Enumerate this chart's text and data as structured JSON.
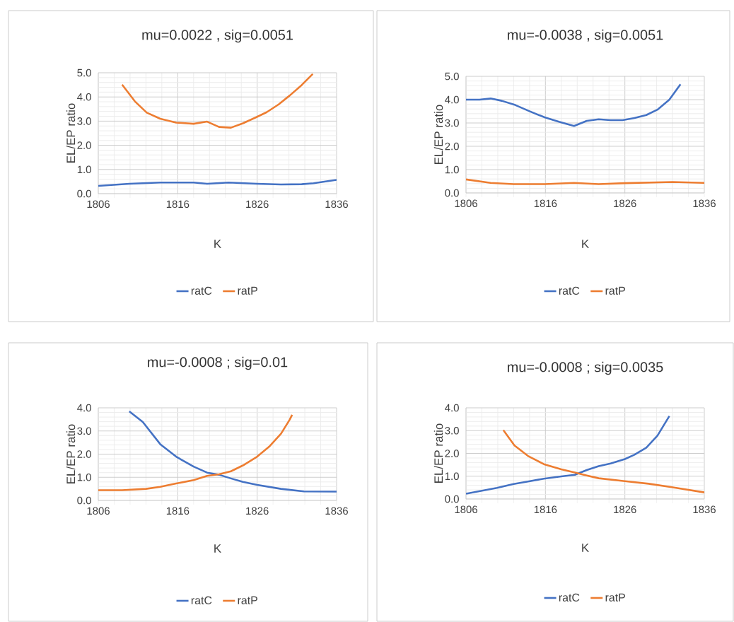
{
  "chart_data": [
    {
      "type": "line",
      "title": "mu=0.0022 , sig=0.0051",
      "xlabel": "K",
      "ylabel": "EL/EP ratio",
      "xlim": [
        1806,
        1836
      ],
      "xticks": [
        1806,
        1816,
        1826,
        1836
      ],
      "ylim": [
        0,
        5
      ],
      "yticks": [
        {
          "value": 0,
          "label": "0.0"
        },
        {
          "value": 1,
          "label": "1.0"
        },
        {
          "value": 2,
          "label": "2.0"
        },
        {
          "value": 3,
          "label": "3.0"
        },
        {
          "value": 4,
          "label": "4.0"
        },
        {
          "value": 5,
          "label": "5.0"
        }
      ],
      "grid": true,
      "legend": "bottom",
      "series": [
        {
          "name": "ratC",
          "color": "#4472c4",
          "x": [
            1806,
            1809.9,
            1813.8,
            1818.0,
            1819.7,
            1822.4,
            1826.0,
            1829.0,
            1831.6,
            1833.1,
            1836
          ],
          "values": [
            0.32,
            0.41,
            0.46,
            0.46,
            0.41,
            0.46,
            0.41,
            0.38,
            0.39,
            0.43,
            0.57
          ]
        },
        {
          "name": "ratP",
          "color": "#ed7d31",
          "x": [
            1809.0,
            1810.6,
            1812.1,
            1813.8,
            1815.8,
            1818.0,
            1819.7,
            1821.2,
            1822.7,
            1824.2,
            1826.0,
            1827.2,
            1828.7,
            1830.1,
            1831.6,
            1833.0
          ],
          "values": [
            4.51,
            3.82,
            3.35,
            3.1,
            2.94,
            2.89,
            2.98,
            2.76,
            2.73,
            2.91,
            3.18,
            3.37,
            3.69,
            4.06,
            4.49,
            4.95
          ]
        }
      ]
    },
    {
      "type": "line",
      "title": "mu=-0.0038 , sig=0.0051",
      "xlabel": "K",
      "ylabel": "EL/EP ratio",
      "xlim": [
        1806,
        1836
      ],
      "xticks": [
        1806,
        1816,
        1826,
        1836
      ],
      "ylim": [
        0,
        5
      ],
      "yticks": [
        {
          "value": 0,
          "label": "0.0"
        },
        {
          "value": 1,
          "label": "1.0"
        },
        {
          "value": 2,
          "label": "2.0"
        },
        {
          "value": 3,
          "label": "3.0"
        },
        {
          "value": 4,
          "label": "4.0"
        },
        {
          "value": 5,
          "label": "5.0"
        }
      ],
      "grid": true,
      "legend": "bottom",
      "series": [
        {
          "name": "ratC",
          "color": "#4472c4",
          "x": [
            1806,
            1807.7,
            1809.1,
            1810.5,
            1812.2,
            1814.1,
            1815.9,
            1817.7,
            1819.6,
            1821.2,
            1822.7,
            1824.2,
            1825.7,
            1827.2,
            1828.7,
            1830.1,
            1831.6,
            1833.0
          ],
          "values": [
            4.0,
            4.0,
            4.05,
            3.95,
            3.77,
            3.49,
            3.24,
            3.05,
            2.87,
            3.09,
            3.16,
            3.12,
            3.12,
            3.21,
            3.34,
            3.57,
            4.0,
            4.66
          ]
        },
        {
          "name": "ratP",
          "color": "#ed7d31",
          "x": [
            1806,
            1809.1,
            1812.0,
            1815.9,
            1819.6,
            1822.7,
            1826.0,
            1832.0,
            1836
          ],
          "values": [
            0.58,
            0.43,
            0.38,
            0.38,
            0.43,
            0.38,
            0.42,
            0.47,
            0.43
          ]
        }
      ]
    },
    {
      "type": "line",
      "title": "mu=-0.0008 ; sig=0.01",
      "xlabel": "K",
      "ylabel": "EL/EP ratio",
      "xlim": [
        1806,
        1836
      ],
      "xticks": [
        1806,
        1816,
        1826,
        1836
      ],
      "ylim": [
        0,
        4
      ],
      "yticks": [
        {
          "value": 0,
          "label": "0.0"
        },
        {
          "value": 1,
          "label": "1.0"
        },
        {
          "value": 2,
          "label": "2.0"
        },
        {
          "value": 3,
          "label": "3.0"
        },
        {
          "value": 4,
          "label": "4.0"
        }
      ],
      "grid": true,
      "legend": "bottom",
      "series": [
        {
          "name": "ratC",
          "color": "#4472c4",
          "x": [
            1809.9,
            1811.6,
            1813.8,
            1815.8,
            1818.0,
            1819.7,
            1821.2,
            1822.7,
            1824.2,
            1826.0,
            1829.0,
            1831.9,
            1836
          ],
          "values": [
            3.85,
            3.39,
            2.43,
            1.89,
            1.46,
            1.2,
            1.11,
            0.95,
            0.8,
            0.67,
            0.5,
            0.39,
            0.38
          ]
        },
        {
          "name": "ratP",
          "color": "#ed7d31",
          "x": [
            1806,
            1809.0,
            1812.0,
            1813.8,
            1815.8,
            1818.0,
            1819.7,
            1821.2,
            1822.7,
            1824.2,
            1826.0,
            1827.5,
            1829.0,
            1830.1,
            1830.4
          ],
          "values": [
            0.44,
            0.44,
            0.5,
            0.59,
            0.73,
            0.88,
            1.06,
            1.13,
            1.26,
            1.51,
            1.89,
            2.32,
            2.88,
            3.49,
            3.7
          ]
        }
      ]
    },
    {
      "type": "line",
      "title": "mu=-0.0008 ; sig=0.0035",
      "xlabel": "K",
      "ylabel": "EL/EP ratio",
      "xlim": [
        1806,
        1836
      ],
      "xticks": [
        1806,
        1816,
        1826,
        1836
      ],
      "ylim": [
        0,
        4
      ],
      "yticks": [
        {
          "value": 0,
          "label": "0.0"
        },
        {
          "value": 1,
          "label": "1.0"
        },
        {
          "value": 2,
          "label": "2.0"
        },
        {
          "value": 3,
          "label": "3.0"
        },
        {
          "value": 4,
          "label": "4.0"
        }
      ],
      "grid": true,
      "legend": "bottom",
      "series": [
        {
          "name": "ratC",
          "color": "#4472c4",
          "x": [
            1806,
            1809.9,
            1812.0,
            1813.8,
            1815.8,
            1818.0,
            1819.7,
            1821.2,
            1822.7,
            1824.2,
            1826.0,
            1827.2,
            1828.7,
            1830.1,
            1831.6
          ],
          "values": [
            0.23,
            0.49,
            0.66,
            0.77,
            0.89,
            0.99,
            1.06,
            1.27,
            1.44,
            1.56,
            1.75,
            1.94,
            2.25,
            2.78,
            3.64
          ]
        },
        {
          "name": "ratP",
          "color": "#ed7d31",
          "x": [
            1810.7,
            1812.1,
            1813.8,
            1815.8,
            1818.0,
            1819.7,
            1821.2,
            1822.7,
            1826.0,
            1829.0,
            1831.9,
            1836
          ],
          "values": [
            3.02,
            2.35,
            1.89,
            1.53,
            1.3,
            1.16,
            1.03,
            0.91,
            0.78,
            0.67,
            0.52,
            0.29
          ]
        }
      ]
    }
  ]
}
